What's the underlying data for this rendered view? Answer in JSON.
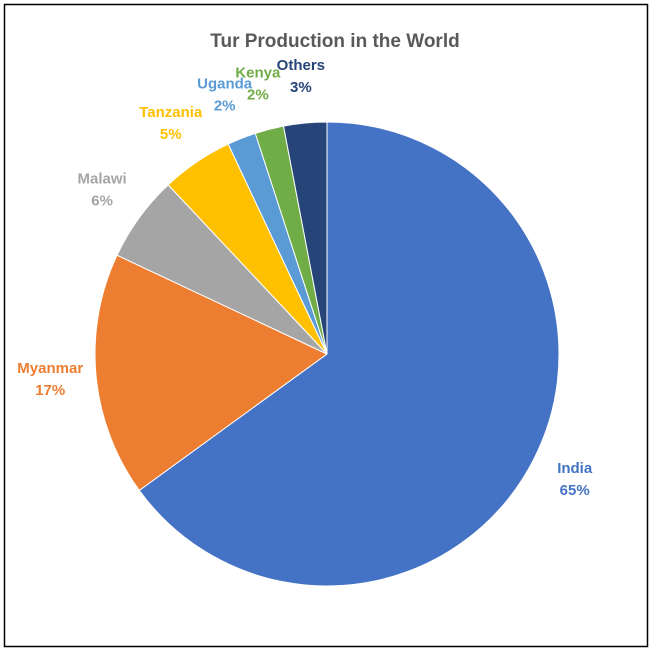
{
  "chart_data": {
    "type": "pie",
    "title": "Tur Production in the World",
    "categories": [
      "India",
      "Myanmar",
      "Malawi",
      "Tanzania",
      "Uganda",
      "Kenya",
      "Others"
    ],
    "values": [
      65,
      17,
      6,
      5,
      2,
      2,
      3
    ],
    "value_labels": [
      "65%",
      "17%",
      "6%",
      "5%",
      "2%",
      "2%",
      "3%"
    ],
    "colors": [
      "#4472c4",
      "#ed7d31",
      "#a5a5a5",
      "#ffc000",
      "#5b9bd5",
      "#70ad47",
      "#264478"
    ]
  }
}
